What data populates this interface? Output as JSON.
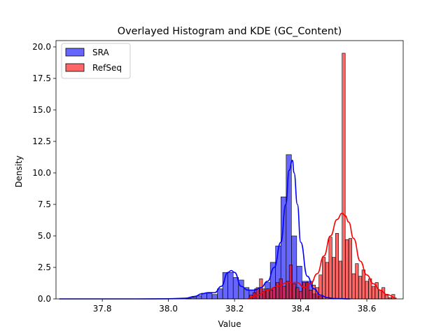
{
  "chart_data": {
    "type": "histogram+kde",
    "title": "Overlayed Histogram and KDE (GC_Content)",
    "xlabel": "Value",
    "ylabel": "Density",
    "xlim": [
      37.66,
      38.71
    ],
    "ylim": [
      0,
      20.5
    ],
    "xticks": [
      37.8,
      38.0,
      38.2,
      38.4,
      38.6
    ],
    "xtick_labels": [
      "37.8",
      "38.0",
      "38.2",
      "38.4",
      "38.6"
    ],
    "yticks": [
      0,
      2.5,
      5,
      7.5,
      10,
      12.5,
      15,
      17.5,
      20
    ],
    "ytick_labels": [
      "0.0",
      "2.5",
      "5.0",
      "7.5",
      "10.0",
      "12.5",
      "15.0",
      "17.5",
      "20.0"
    ],
    "grid": false,
    "legend_position": "top-left",
    "series": [
      {
        "name": "SRA",
        "color": "#0000ff",
        "bin_width": 0.0158,
        "bins": [
          [
            38.06,
            0.05
          ],
          [
            38.076,
            0.12
          ],
          [
            38.092,
            0.25
          ],
          [
            38.108,
            0.45
          ],
          [
            38.124,
            0.45
          ],
          [
            38.14,
            0.35
          ],
          [
            38.156,
            0.8
          ],
          [
            38.172,
            2.1
          ],
          [
            38.188,
            2.1
          ],
          [
            38.204,
            1.7
          ],
          [
            38.22,
            1.5
          ],
          [
            38.236,
            0.9
          ],
          [
            38.252,
            0.7
          ],
          [
            38.268,
            0.8
          ],
          [
            38.284,
            0.8
          ],
          [
            38.3,
            1.3
          ],
          [
            38.316,
            2.9
          ],
          [
            38.332,
            4.2
          ],
          [
            38.348,
            8.1
          ],
          [
            38.364,
            11.45
          ],
          [
            38.38,
            5.0
          ],
          [
            38.396,
            2.6
          ],
          [
            38.412,
            1.4
          ],
          [
            38.428,
            1.4
          ],
          [
            38.444,
            0.4
          ],
          [
            38.46,
            0.2
          ]
        ],
        "kde": {
          "x": [
            37.67,
            37.9,
            38.0,
            38.05,
            38.08,
            38.1,
            38.12,
            38.14,
            38.16,
            38.18,
            38.19,
            38.2,
            38.22,
            38.24,
            38.26,
            38.28,
            38.3,
            38.32,
            38.34,
            38.355,
            38.365,
            38.375,
            38.38,
            38.39,
            38.4,
            38.42,
            38.44,
            38.46,
            38.48,
            38.5,
            38.55
          ],
          "y": [
            0,
            0,
            0.01,
            0.05,
            0.2,
            0.4,
            0.5,
            0.5,
            1.0,
            2.1,
            2.25,
            2.1,
            1.0,
            0.7,
            0.7,
            0.9,
            1.4,
            2.5,
            4.5,
            7.5,
            10.2,
            11.0,
            10.0,
            7.5,
            4.5,
            1.8,
            0.8,
            0.3,
            0.1,
            0.03,
            0
          ]
        }
      },
      {
        "name": "RefSeq",
        "color": "#ff0000",
        "bin_width": 0.0094,
        "bins": [
          [
            38.25,
            0.3
          ],
          [
            38.26,
            0.5
          ],
          [
            38.27,
            0.9
          ],
          [
            38.28,
            1.6
          ],
          [
            38.29,
            0.6
          ],
          [
            38.3,
            0.8
          ],
          [
            38.31,
            0.7
          ],
          [
            38.32,
            0.9
          ],
          [
            38.33,
            1.3
          ],
          [
            38.34,
            1.6
          ],
          [
            38.35,
            1.0
          ],
          [
            38.36,
            1.4
          ],
          [
            38.37,
            2.7
          ],
          [
            38.38,
            1.2
          ],
          [
            38.39,
            0.9
          ],
          [
            38.4,
            0.6
          ],
          [
            38.41,
            1.3
          ],
          [
            38.42,
            1.3
          ],
          [
            38.43,
            0.7
          ],
          [
            38.44,
            1.1
          ],
          [
            38.45,
            0.9
          ],
          [
            38.46,
            1.9
          ],
          [
            38.47,
            3.3
          ],
          [
            38.48,
            2.9
          ],
          [
            38.49,
            4.9
          ],
          [
            38.5,
            3.3
          ],
          [
            38.51,
            5.2
          ],
          [
            38.52,
            3.0
          ],
          [
            38.53,
            19.5
          ],
          [
            38.54,
            4.7
          ],
          [
            38.55,
            4.8
          ],
          [
            38.56,
            2.0
          ],
          [
            38.57,
            2.8
          ],
          [
            38.58,
            1.8
          ],
          [
            38.59,
            2.3
          ],
          [
            38.6,
            1.4
          ],
          [
            38.61,
            1.6
          ],
          [
            38.62,
            1.0
          ],
          [
            38.63,
            1.3
          ],
          [
            38.64,
            0.7
          ],
          [
            38.65,
            0.9
          ],
          [
            38.66,
            0.3
          ],
          [
            38.67,
            0.1
          ],
          [
            38.68,
            0.35
          ]
        ],
        "kde": {
          "x": [
            38.24,
            38.27,
            38.3,
            38.33,
            38.36,
            38.39,
            38.41,
            38.43,
            38.45,
            38.47,
            38.49,
            38.51,
            38.525,
            38.535,
            38.545,
            38.56,
            38.58,
            38.6,
            38.62,
            38.64,
            38.66,
            38.69
          ],
          "y": [
            0.05,
            0.3,
            0.7,
            1.0,
            1.3,
            1.3,
            0.9,
            1.2,
            2.0,
            3.4,
            5.0,
            6.3,
            6.8,
            6.6,
            6.1,
            4.8,
            3.0,
            1.9,
            1.2,
            0.7,
            0.35,
            0.05
          ]
        }
      }
    ]
  }
}
